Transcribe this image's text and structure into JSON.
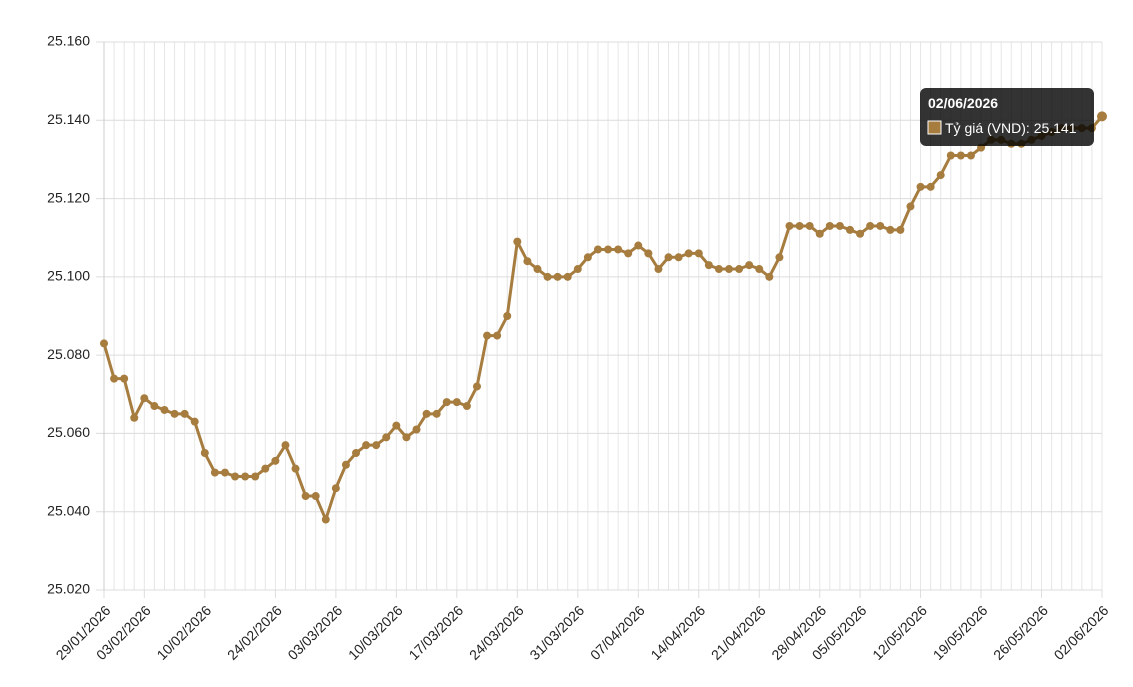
{
  "chart_data": {
    "type": "line",
    "categories": [
      "29/01/2026",
      null,
      null,
      null,
      "03/02/2026",
      null,
      null,
      null,
      null,
      null,
      "10/02/2026",
      null,
      null,
      null,
      null,
      null,
      null,
      "24/02/2026",
      null,
      null,
      null,
      null,
      null,
      "03/03/2026",
      null,
      null,
      null,
      null,
      null,
      "10/03/2026",
      null,
      null,
      null,
      null,
      null,
      "17/03/2026",
      null,
      null,
      null,
      null,
      null,
      "24/03/2026",
      null,
      null,
      null,
      null,
      null,
      "31/03/2026",
      null,
      null,
      null,
      null,
      null,
      "07/04/2026",
      null,
      null,
      null,
      null,
      null,
      "14/04/2026",
      null,
      null,
      null,
      null,
      null,
      "21/04/2026",
      null,
      null,
      null,
      null,
      null,
      "28/04/2026",
      null,
      null,
      null,
      "05/05/2026",
      null,
      null,
      null,
      null,
      null,
      "12/05/2026",
      null,
      null,
      null,
      null,
      null,
      "19/05/2026",
      null,
      null,
      null,
      null,
      null,
      "26/05/2026",
      null,
      null,
      null,
      null,
      null,
      "02/06/2026"
    ],
    "series": [
      {
        "name": "Tỷ giá (VND)",
        "color": "#a67c3f",
        "values": [
          25083,
          25074,
          25074,
          25064,
          25069,
          25067,
          25066,
          25065,
          25065,
          25063,
          25055,
          25050,
          25050,
          25049,
          25049,
          25049,
          25051,
          25053,
          25057,
          25051,
          25044,
          25044,
          25038,
          25046,
          25052,
          25055,
          25057,
          25057,
          25059,
          25062,
          25059,
          25061,
          25065,
          25065,
          25068,
          25068,
          25067,
          25072,
          25085,
          25085,
          25090,
          25109,
          25104,
          25102,
          25100,
          25100,
          25100,
          25102,
          25105,
          25107,
          25107,
          25107,
          25106,
          25108,
          25106,
          25102,
          25105,
          25105,
          25106,
          25106,
          25103,
          25102,
          25102,
          25102,
          25103,
          25102,
          25100,
          25105,
          25113,
          25113,
          25113,
          25111,
          25113,
          25113,
          25112,
          25111,
          25113,
          25113,
          25112,
          25112,
          25118,
          25123,
          25123,
          25126,
          25131,
          25131,
          25131,
          25133,
          25135,
          25135,
          25134,
          25134,
          25135,
          25136,
          25137,
          25138,
          25138,
          25138,
          25138,
          25141
        ],
        "value_labels": [
          null,
          null,
          null,
          null,
          null,
          null,
          null,
          null,
          null,
          null,
          null,
          null,
          null,
          null,
          null,
          null,
          null,
          null,
          null,
          null,
          null,
          null,
          null,
          null,
          null,
          null,
          null,
          null,
          null,
          null,
          null,
          null,
          null,
          null,
          null,
          null,
          null,
          null,
          null,
          null,
          null,
          null,
          null,
          null,
          null,
          null,
          null,
          null,
          null,
          null,
          null,
          null,
          null,
          null,
          null,
          null,
          null,
          null,
          null,
          null,
          null,
          null,
          null,
          null,
          null,
          null,
          null,
          null,
          null,
          null,
          null,
          null,
          null,
          null,
          null,
          null,
          null,
          null,
          null,
          null,
          null,
          null,
          null,
          null,
          null,
          null,
          null,
          null,
          null,
          null,
          null,
          null,
          null,
          null,
          null,
          null,
          null,
          null,
          null,
          "25.141"
        ]
      }
    ],
    "ylim": [
      25020,
      25160
    ],
    "yticks": [
      {
        "value": 25020,
        "label": "25.020"
      },
      {
        "value": 25040,
        "label": "25.040"
      },
      {
        "value": 25060,
        "label": "25.060"
      },
      {
        "value": 25080,
        "label": "25.080"
      },
      {
        "value": 25100,
        "label": "25.100"
      },
      {
        "value": 25120,
        "label": "25.120"
      },
      {
        "value": 25140,
        "label": "25.140"
      },
      {
        "value": 25160,
        "label": "25.160"
      }
    ],
    "grid": true
  }
}
